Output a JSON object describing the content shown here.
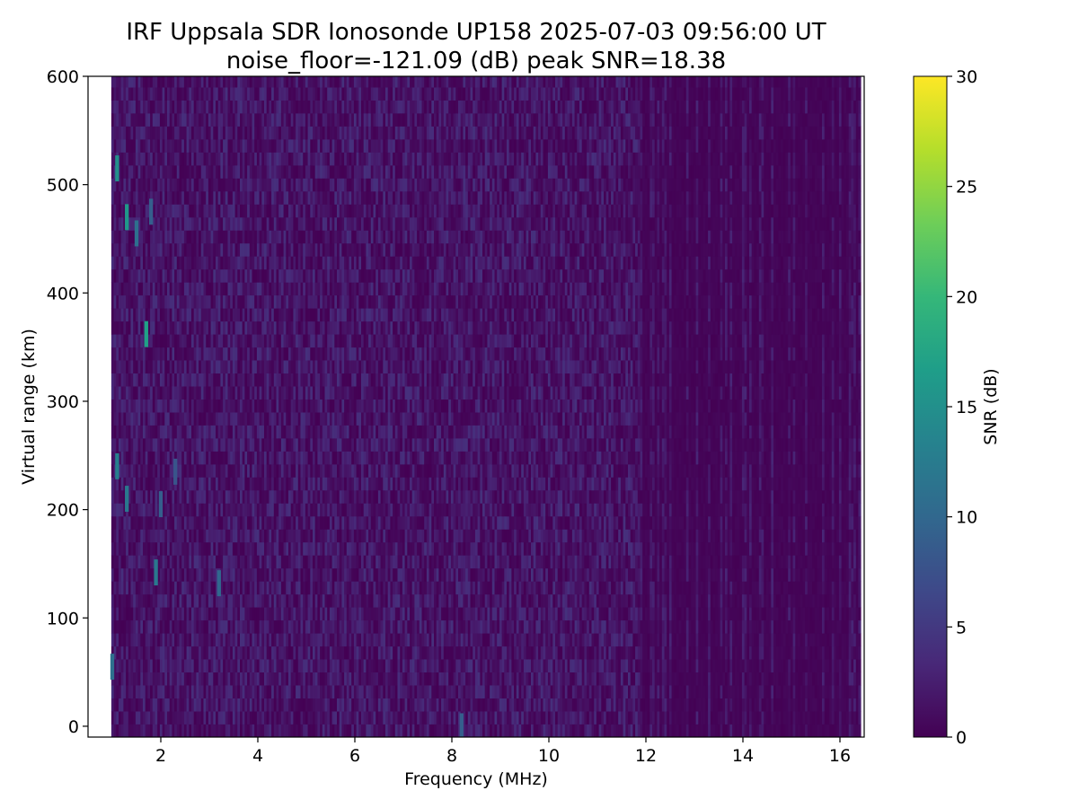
{
  "chart_data": {
    "type": "heatmap",
    "title_line1": "IRF Uppsala SDR Ionosonde UP158 2025-07-03 09:56:00  UT",
    "title_line2": "noise_floor=-121.09 (dB) peak SNR=18.38",
    "xlabel": "Frequency (MHz)",
    "ylabel": "Virtual range (km)",
    "colorbar_label": "SNR (dB)",
    "xlim": [
      0.5,
      16.5
    ],
    "ylim": [
      -10,
      600
    ],
    "xticks": [
      2,
      4,
      6,
      8,
      10,
      12,
      14,
      16
    ],
    "yticks": [
      0,
      100,
      200,
      300,
      400,
      500,
      600
    ],
    "colorbar_ticks": [
      0,
      5,
      10,
      15,
      20,
      25,
      30
    ],
    "colorbar_range": [
      0,
      30
    ],
    "colormap": "viridis",
    "colormap_stops": [
      "#440154",
      "#482878",
      "#3e4989",
      "#31688e",
      "#26828e",
      "#1f9e89",
      "#35b779",
      "#6ece58",
      "#b5de2b",
      "#fde725"
    ],
    "data_freq_range_mhz": [
      0.98,
      16.4
    ],
    "noise_floor_db": -121.09,
    "peak_snr_db": 18.38,
    "echo_features": [
      {
        "freq_mhz": 1.3,
        "range_km": 470,
        "snr_db": 16
      },
      {
        "freq_mhz": 1.1,
        "range_km": 515,
        "snr_db": 15
      },
      {
        "freq_mhz": 1.7,
        "range_km": 362,
        "snr_db": 17
      },
      {
        "freq_mhz": 1.1,
        "range_km": 240,
        "snr_db": 13
      },
      {
        "freq_mhz": 1.3,
        "range_km": 210,
        "snr_db": 12
      },
      {
        "freq_mhz": 1.9,
        "range_km": 142,
        "snr_db": 12
      },
      {
        "freq_mhz": 1.0,
        "range_km": 55,
        "snr_db": 11
      },
      {
        "freq_mhz": 1.5,
        "range_km": 455,
        "snr_db": 11
      },
      {
        "freq_mhz": 3.2,
        "range_km": 132,
        "snr_db": 10
      },
      {
        "freq_mhz": 2.0,
        "range_km": 205,
        "snr_db": 9
      },
      {
        "freq_mhz": 1.8,
        "range_km": 475,
        "snr_db": 9
      },
      {
        "freq_mhz": 2.3,
        "range_km": 235,
        "snr_db": 8
      },
      {
        "freq_mhz": 8.2,
        "range_km": 0,
        "snr_db": 9
      }
    ]
  }
}
